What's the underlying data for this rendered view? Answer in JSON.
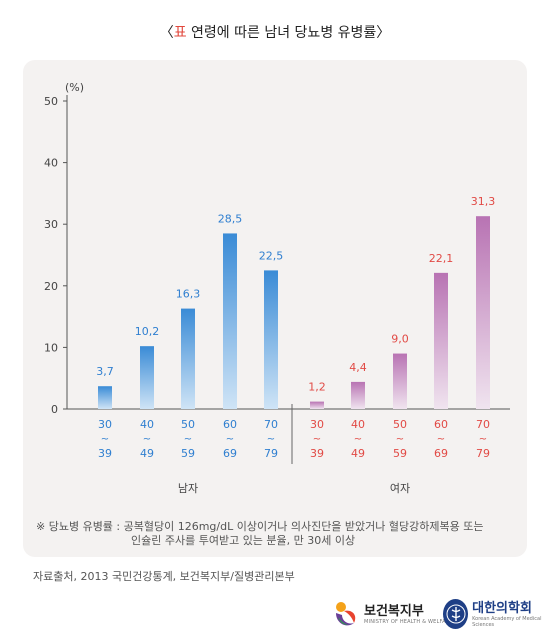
{
  "title": {
    "open": "〈",
    "tag": "표",
    "text": " 연령에 따른 남녀 당뇨병 유병률",
    "close": "〉"
  },
  "chart_data": {
    "type": "bar",
    "unit_label": "(%)",
    "ylim": [
      0,
      50
    ],
    "yticks": [
      0,
      10,
      20,
      30,
      40,
      50
    ],
    "groups": [
      {
        "name": "남자",
        "color": "#2f7fd0",
        "categories": [
          [
            "30",
            "~",
            "39"
          ],
          [
            "40",
            "~",
            "49"
          ],
          [
            "50",
            "~",
            "59"
          ],
          [
            "60",
            "~",
            "69"
          ],
          [
            "70",
            "~",
            "79"
          ]
        ],
        "values": [
          3.7,
          10.2,
          16.3,
          28.5,
          22.5
        ],
        "labels": [
          "3,7",
          "10,2",
          "16,3",
          "28,5",
          "22,5"
        ]
      },
      {
        "name": "여자",
        "color": "#e14a45",
        "categories": [
          [
            "30",
            "~",
            "39"
          ],
          [
            "40",
            "~",
            "49"
          ],
          [
            "50",
            "~",
            "59"
          ],
          [
            "60",
            "~",
            "69"
          ],
          [
            "70",
            "~",
            "79"
          ]
        ],
        "values": [
          1.2,
          4.4,
          9.0,
          22.1,
          31.3
        ],
        "labels": [
          "1,2",
          "4,4",
          "9,0",
          "22,1",
          "31,3"
        ]
      }
    ]
  },
  "note": {
    "line1": "※  당뇨병 유병률 : 공복혈당이 126mg/dL 이상이거나 의사진단을 받았거나 혈당강하제복용 또는",
    "line2": "인슐린 주사를 투여받고 있는 분율, 만 30세 이상"
  },
  "source": "자료출처, 2013 국민건강통계, 보건복지부/질병관리본부",
  "logos": {
    "mohw_name": "보건복지부",
    "mohw_sub": "MINISTRY OF HEALTH & WELFARE",
    "kams_name": "대한의학회",
    "kams_sub": "Korean Academy of Medical Sciences"
  }
}
